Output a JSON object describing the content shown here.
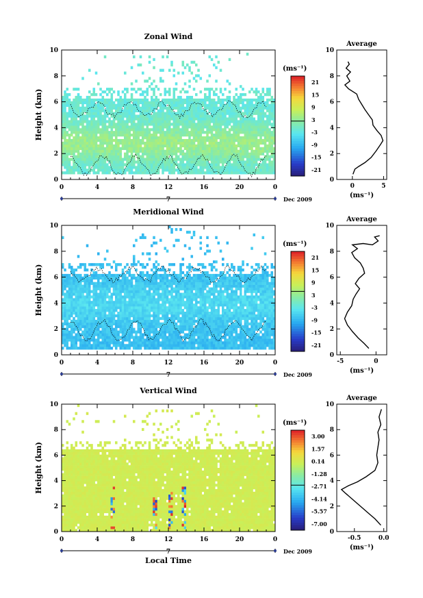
{
  "chart_data": [
    {
      "type": "heatmap",
      "title": "Zonal Wind",
      "ylabel": "Height (km)",
      "xlim": [
        0,
        24
      ],
      "ylim": [
        0,
        10
      ],
      "x_ticks": [
        "0",
        "4",
        "8",
        "12",
        "16",
        "20",
        "0"
      ],
      "y_ticks": [
        "0",
        "2",
        "4",
        "6",
        "8",
        "10"
      ],
      "date_marker": "7",
      "date_label": "Dec 2009",
      "colorbar": {
        "unit": "(ms⁻¹)",
        "ticks": [
          "21",
          "15",
          "9",
          "3",
          "-3",
          "-9",
          "-15",
          "-21"
        ]
      },
      "fill_level": 0.45,
      "profile": {
        "title": "Average",
        "xlabel": "(ms⁻¹)",
        "x_ticks": [
          "0",
          "5"
        ],
        "xlim": [
          -2.5,
          5.5
        ],
        "y_ticks": [
          "0",
          "2",
          "4",
          "6",
          "8",
          "10"
        ],
        "ylim": [
          0,
          10
        ],
        "points": [
          [
            0.1,
            0.4
          ],
          [
            0.4,
            0.8
          ],
          [
            1.0,
            1.0
          ],
          [
            2.0,
            1.3
          ],
          [
            3.0,
            1.7
          ],
          [
            3.8,
            2.2
          ],
          [
            4.5,
            2.7
          ],
          [
            4.9,
            3.0
          ],
          [
            4.6,
            3.4
          ],
          [
            3.9,
            3.8
          ],
          [
            3.3,
            4.2
          ],
          [
            3.2,
            4.6
          ],
          [
            2.6,
            5.0
          ],
          [
            2.0,
            5.4
          ],
          [
            1.5,
            5.8
          ],
          [
            1.0,
            6.2
          ],
          [
            0.7,
            6.6
          ],
          [
            -0.6,
            7.0
          ],
          [
            -1.2,
            7.3
          ],
          [
            -0.4,
            7.6
          ],
          [
            -0.9,
            8.0
          ],
          [
            -0.3,
            8.3
          ],
          [
            -1.0,
            8.6
          ],
          [
            -0.5,
            8.9
          ],
          [
            -0.7,
            9.1
          ]
        ]
      }
    },
    {
      "type": "heatmap",
      "title": "Meridional Wind",
      "ylabel": "Height (km)",
      "xlim": [
        0,
        24
      ],
      "ylim": [
        0,
        10
      ],
      "x_ticks": [
        "0",
        "4",
        "8",
        "12",
        "16",
        "20",
        "0"
      ],
      "y_ticks": [
        "0",
        "2",
        "4",
        "6",
        "8",
        "10"
      ],
      "date_marker": "7",
      "date_label": "Dec 2009",
      "colorbar": {
        "unit": "(ms⁻¹)",
        "ticks": [
          "21",
          "15",
          "9",
          "3",
          "-3",
          "-9",
          "-15",
          "-21"
        ]
      },
      "fill_level": 0.4,
      "profile": {
        "title": "Average",
        "xlabel": "(ms⁻¹)",
        "x_ticks": [
          "-5",
          "0"
        ],
        "xlim": [
          -5.5,
          1.5
        ],
        "y_ticks": [
          "0",
          "2",
          "4",
          "6",
          "8",
          "10"
        ],
        "ylim": [
          0,
          10
        ],
        "points": [
          [
            -1.0,
            0.5
          ],
          [
            -1.7,
            0.9
          ],
          [
            -2.5,
            1.3
          ],
          [
            -3.3,
            1.8
          ],
          [
            -4.0,
            2.3
          ],
          [
            -4.4,
            2.8
          ],
          [
            -4.0,
            3.3
          ],
          [
            -3.4,
            3.8
          ],
          [
            -3.2,
            4.3
          ],
          [
            -2.8,
            4.7
          ],
          [
            -2.3,
            5.1
          ],
          [
            -2.9,
            5.5
          ],
          [
            -2.4,
            5.9
          ],
          [
            -1.6,
            6.3
          ],
          [
            -1.8,
            6.7
          ],
          [
            -2.2,
            7.1
          ],
          [
            -3.0,
            7.5
          ],
          [
            -3.4,
            7.9
          ],
          [
            -2.6,
            8.2
          ],
          [
            -3.3,
            8.5
          ],
          [
            -1.8,
            8.6
          ],
          [
            -0.5,
            8.5
          ],
          [
            0.3,
            8.8
          ],
          [
            -0.2,
            9.1
          ],
          [
            0.5,
            9.2
          ]
        ]
      }
    },
    {
      "type": "heatmap",
      "title": "Vertical Wind",
      "ylabel": "Height (km)",
      "xlabel": "Local Time",
      "xlim": [
        0,
        24
      ],
      "ylim": [
        0,
        10
      ],
      "x_ticks": [
        "0",
        "4",
        "8",
        "12",
        "16",
        "20",
        "0"
      ],
      "y_ticks": [
        "0",
        "2",
        "4",
        "6",
        "8",
        "10"
      ],
      "date_marker": "7",
      "date_label": "Dec 2009",
      "colorbar": {
        "unit": "(ms⁻¹)",
        "ticks": [
          "3.00",
          "1.57",
          "0.14",
          "-1.28",
          "-2.71",
          "-4.14",
          "-5.57",
          "-7.00"
        ]
      },
      "fill_level": 0.55,
      "profile": {
        "title": "Average",
        "xlabel": "(ms⁻¹)",
        "x_ticks": [
          "-0.5",
          "0.0"
        ],
        "xlim": [
          -0.8,
          0.05
        ],
        "y_ticks": [
          "0",
          "2",
          "4",
          "6",
          "8",
          "10"
        ],
        "ylim": [
          0,
          10
        ],
        "points": [
          [
            -0.05,
            0.5
          ],
          [
            -0.15,
            1.0
          ],
          [
            -0.25,
            1.4
          ],
          [
            -0.35,
            1.8
          ],
          [
            -0.45,
            2.2
          ],
          [
            -0.55,
            2.6
          ],
          [
            -0.65,
            3.0
          ],
          [
            -0.72,
            3.3
          ],
          [
            -0.6,
            3.6
          ],
          [
            -0.45,
            3.9
          ],
          [
            -0.3,
            4.3
          ],
          [
            -0.15,
            4.8
          ],
          [
            -0.1,
            5.4
          ],
          [
            -0.12,
            6.0
          ],
          [
            -0.1,
            6.6
          ],
          [
            -0.08,
            7.2
          ],
          [
            -0.1,
            7.8
          ],
          [
            -0.05,
            8.4
          ],
          [
            -0.08,
            9.0
          ],
          [
            -0.04,
            9.6
          ]
        ]
      }
    }
  ]
}
